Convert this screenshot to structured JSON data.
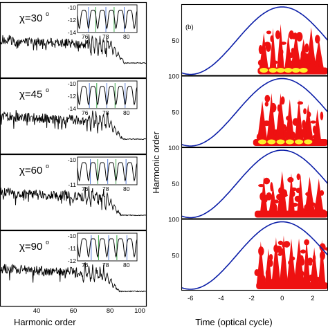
{
  "figure": {
    "left_xlabel": "Harmonic order",
    "right_xlabel": "Time (optical cycle)",
    "right_ylabel": "Harmonic order",
    "right_panel_tag": "(b)",
    "colors": {
      "spectrum": "#000000",
      "envelope": "#0b1ea8",
      "map_red": "#ee1111",
      "map_yellow": "#ffef2a",
      "inset_blue_line": "#5a7fd6",
      "inset_green_line": "#3aa84a"
    }
  },
  "chart_data": [
    {
      "type": "line",
      "panel": "a-1",
      "annotation": "χ=30°",
      "chi": "χ=30",
      "deg": "o",
      "xlim": [
        20,
        100
      ],
      "xticks": [
        "40",
        "60",
        "80",
        "100"
      ],
      "cutoff": 88,
      "inset": {
        "xlim": [
          75,
          81.5
        ],
        "ylim": [
          -14,
          -9
        ],
        "xticks": [
          "76",
          "78",
          "80"
        ],
        "yticks": [
          "-10",
          "-12",
          "-14"
        ],
        "blue_lines": [
          76.2,
          78.1,
          80.1
        ],
        "green_lines": [
          77.0,
          79.0
        ]
      }
    },
    {
      "type": "line",
      "panel": "a-2",
      "annotation": "χ=45°",
      "chi": "χ=45",
      "deg": "o",
      "xlim": [
        20,
        100
      ],
      "xticks": [
        "40",
        "60",
        "80",
        "100"
      ],
      "cutoff": 87,
      "inset": {
        "xlim": [
          75,
          81.5
        ],
        "ylim": [
          -14,
          -9
        ],
        "xticks": [
          "76",
          "78",
          "80"
        ],
        "yticks": [
          "-10",
          "-12",
          "-14"
        ],
        "blue_lines": [
          76.3,
          78.2,
          80.2
        ],
        "green_lines": [
          77.1,
          79.1
        ]
      }
    },
    {
      "type": "line",
      "panel": "a-3",
      "annotation": "χ=60°",
      "chi": "χ=60",
      "deg": "o",
      "xlim": [
        20,
        100
      ],
      "xticks": [
        "40",
        "60",
        "80",
        "100"
      ],
      "cutoff": 86,
      "inset": {
        "xlim": [
          75,
          81.5
        ],
        "ylim": [
          -11.5,
          -9.5
        ],
        "xticks": [
          "76",
          "78",
          "80"
        ],
        "yticks": [
          "-10",
          "-11"
        ],
        "blue_lines": [
          76.4,
          78.3,
          80.3
        ],
        "green_lines": [
          77.2,
          79.2
        ]
      }
    },
    {
      "type": "line",
      "panel": "a-4",
      "annotation": "χ=90°",
      "chi": "χ=90",
      "deg": "o",
      "xlim": [
        20,
        100
      ],
      "xticks": [
        "40",
        "60",
        "80",
        "100"
      ],
      "cutoff": 85,
      "inset": {
        "xlim": [
          75,
          81.5
        ],
        "ylim": [
          -12.5,
          -9.5
        ],
        "xticks": [
          "76",
          "78",
          "80"
        ],
        "yticks": [
          "-10",
          "-11",
          "-12"
        ],
        "blue_lines": [
          76.5,
          78.4,
          80.4
        ],
        "green_lines": [
          77.3,
          79.3
        ]
      }
    },
    {
      "type": "heatmap",
      "panel": "b",
      "xlim": [
        -6.6,
        3
      ],
      "ylim": [
        0,
        100
      ],
      "xticks": [
        "-6",
        "-4",
        "-2",
        "0",
        "2"
      ],
      "yticks_upper": [
        "100",
        "50"
      ],
      "yticks_inner": [
        "100",
        "50"
      ],
      "rows": [
        {
          "onset": -1.6,
          "bursts": [
            -1.2,
            -0.6,
            -0.1,
            0.4,
            0.9,
            1.4,
            1.9,
            2.4
          ],
          "peak": 75,
          "yellow": true
        },
        {
          "onset": -1.9,
          "bursts": [
            -1.3,
            -0.7,
            -0.1,
            0.5,
            1.1,
            1.7,
            2.3
          ],
          "peak": 80,
          "yellow": true
        },
        {
          "onset": -1.8,
          "bursts": [
            -1.2,
            -0.6,
            0.0,
            0.6,
            1.2,
            1.8,
            2.4
          ],
          "peak": 72,
          "yellow": false
        },
        {
          "onset": -1.7,
          "bursts": [
            -1.4,
            -0.9,
            -0.4,
            0.1,
            0.6,
            1.1,
            1.6,
            2.1,
            2.6
          ],
          "peak": 82,
          "yellow": false
        }
      ]
    }
  ]
}
